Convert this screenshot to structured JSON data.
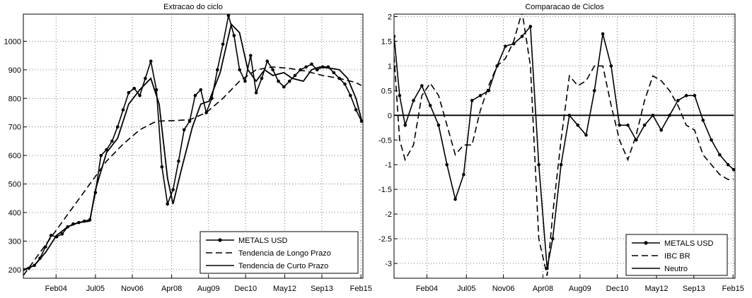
{
  "chart_data": [
    {
      "type": "line",
      "title": "Extracao do ciclo",
      "xlabel": "",
      "ylabel": "",
      "xticks": [
        "Feb04",
        "Jul05",
        "Nov06",
        "Apr08",
        "Aug09",
        "Dec10",
        "May12",
        "Sep13",
        "Feb15"
      ],
      "yticks": [
        200,
        300,
        400,
        500,
        600,
        700,
        800,
        900,
        1000
      ],
      "ylim": [
        170,
        1095
      ],
      "grid": true,
      "legend_position": "bottom-right",
      "series": [
        {
          "name": "METALS USD",
          "style": "line-markers",
          "x": [
            2002.9,
            2003.1,
            2003.3,
            2003.5,
            2003.7,
            2003.9,
            2004.1,
            2004.3,
            2004.5,
            2004.7,
            2004.9,
            2005.1,
            2005.3,
            2005.5,
            2005.7,
            2005.9,
            2006.1,
            2006.3,
            2006.5,
            2006.7,
            2006.9,
            2007.1,
            2007.3,
            2007.5,
            2007.7,
            2007.9,
            2008.1,
            2008.3,
            2008.5,
            2008.7,
            2008.9,
            2009.1,
            2009.3,
            2009.5,
            2009.7,
            2009.9,
            2010.1,
            2010.3,
            2010.5,
            2010.7,
            2010.9,
            2011.1,
            2011.3,
            2011.5,
            2011.7,
            2011.9,
            2012.1,
            2012.3,
            2012.5,
            2012.7,
            2012.9,
            2013.1,
            2013.3,
            2013.5,
            2013.7,
            2013.9,
            2014.1,
            2014.3,
            2014.5,
            2014.7,
            2014.9,
            2015.1
          ],
          "y": [
            200,
            205,
            215,
            240,
            280,
            320,
            315,
            325,
            350,
            360,
            365,
            370,
            375,
            470,
            600,
            620,
            650,
            700,
            760,
            820,
            835,
            810,
            870,
            930,
            830,
            560,
            430,
            480,
            580,
            690,
            720,
            810,
            830,
            750,
            800,
            900,
            990,
            1090,
            1020,
            900,
            860,
            950,
            820,
            870,
            930,
            900,
            860,
            840,
            860,
            880,
            900,
            910,
            920,
            900,
            910,
            910,
            890,
            870,
            850,
            810,
            760,
            720
          ]
        },
        {
          "name": "Tendencia de Longo Prazo",
          "style": "dashed",
          "x": [
            2002.9,
            2003.5,
            2004.1,
            2004.7,
            2005.3,
            2005.9,
            2006.5,
            2007.1,
            2007.7,
            2008.3,
            2008.9,
            2009.5,
            2010.1,
            2010.7,
            2011.3,
            2011.9,
            2012.5,
            2013.1,
            2013.7,
            2014.3,
            2014.9,
            2015.1
          ],
          "y": [
            180,
            260,
            340,
            420,
            500,
            580,
            640,
            690,
            720,
            722,
            725,
            750,
            800,
            860,
            900,
            910,
            905,
            895,
            880,
            870,
            855,
            845
          ]
        },
        {
          "name": "Tendencia de Curto Prazo",
          "style": "solid",
          "x": [
            2002.9,
            2003.3,
            2003.7,
            2004.1,
            2004.5,
            2004.9,
            2005.3,
            2005.5,
            2005.9,
            2006.3,
            2006.7,
            2007.1,
            2007.5,
            2007.8,
            2008.1,
            2008.3,
            2008.6,
            2009.0,
            2009.3,
            2009.6,
            2010.0,
            2010.4,
            2010.7,
            2011.0,
            2011.3,
            2011.6,
            2011.9,
            2012.3,
            2012.6,
            2013.0,
            2013.3,
            2013.6,
            2014.0,
            2014.3,
            2014.6,
            2014.9,
            2015.1
          ],
          "y": [
            200,
            215,
            260,
            320,
            350,
            365,
            370,
            480,
            610,
            660,
            780,
            830,
            870,
            780,
            520,
            430,
            550,
            700,
            780,
            790,
            890,
            1060,
            1030,
            900,
            860,
            900,
            880,
            890,
            870,
            860,
            900,
            910,
            905,
            900,
            870,
            800,
            725
          ]
        }
      ]
    },
    {
      "type": "line",
      "title": "Comparacao de Ciclos",
      "xlabel": "",
      "ylabel": "",
      "xticks": [
        "Feb04",
        "Jul05",
        "Nov06",
        "Apr08",
        "Aug09",
        "Dec10",
        "May12",
        "Sep13",
        "Feb15"
      ],
      "yticks": [
        -3,
        -2.5,
        -2,
        -1.5,
        -1,
        -0.5,
        0,
        0.5,
        1,
        1.5,
        2
      ],
      "ylim": [
        -3.3,
        2.05
      ],
      "grid": true,
      "legend_position": "bottom-right",
      "series": [
        {
          "name": "METALS USD",
          "style": "line-markers",
          "x": [
            2002.9,
            2003.1,
            2003.3,
            2003.6,
            2003.9,
            2004.2,
            2004.5,
            2004.8,
            2005.1,
            2005.4,
            2005.7,
            2006.0,
            2006.3,
            2006.6,
            2006.9,
            2007.2,
            2007.5,
            2007.8,
            2008.1,
            2008.4,
            2008.6,
            2008.9,
            2009.2,
            2009.5,
            2009.8,
            2010.1,
            2010.4,
            2010.7,
            2011.0,
            2011.3,
            2011.6,
            2011.9,
            2012.2,
            2012.5,
            2012.8,
            2013.1,
            2013.4,
            2013.7,
            2014.0,
            2014.3,
            2014.6,
            2014.9,
            2015.1
          ],
          "y": [
            1.6,
            0.4,
            -0.2,
            0.3,
            0.6,
            0.2,
            -0.2,
            -1.0,
            -1.7,
            -1.2,
            0.3,
            0.4,
            0.5,
            1.0,
            1.4,
            1.45,
            1.6,
            1.8,
            -1.0,
            -3.1,
            -2.5,
            -1.0,
            0.0,
            -0.2,
            -0.4,
            0.5,
            1.65,
            1.0,
            -0.2,
            -0.2,
            -0.5,
            -0.2,
            0.0,
            -0.3,
            0.0,
            0.3,
            0.4,
            0.4,
            -0.1,
            -0.5,
            -0.8,
            -1.0,
            -1.1
          ]
        },
        {
          "name": "IBC BR",
          "style": "dashed",
          "x": [
            2002.9,
            2003.1,
            2003.3,
            2003.6,
            2003.9,
            2004.2,
            2004.5,
            2004.8,
            2005.1,
            2005.4,
            2005.7,
            2006.0,
            2006.3,
            2006.6,
            2006.9,
            2007.2,
            2007.5,
            2007.8,
            2008.1,
            2008.4,
            2008.6,
            2008.9,
            2009.2,
            2009.5,
            2009.8,
            2010.1,
            2010.4,
            2010.7,
            2011.0,
            2011.3,
            2011.6,
            2011.9,
            2012.2,
            2012.5,
            2012.8,
            2013.1,
            2013.4,
            2013.7,
            2014.0,
            2014.3,
            2014.6,
            2014.9,
            2015.1
          ],
          "y": [
            1.2,
            -0.5,
            -0.9,
            -0.6,
            0.4,
            0.65,
            0.4,
            -0.2,
            -0.8,
            -0.6,
            -0.6,
            0.1,
            0.6,
            1.0,
            1.15,
            1.5,
            2.1,
            1.0,
            -2.5,
            -3.25,
            -2.0,
            -0.5,
            0.8,
            0.6,
            0.7,
            1.0,
            1.0,
            0.2,
            -0.5,
            -0.9,
            -0.4,
            0.3,
            0.8,
            0.7,
            0.5,
            0.2,
            -0.2,
            -0.3,
            -0.8,
            -1.0,
            -1.2,
            -1.3,
            -1.3
          ]
        },
        {
          "name": "Neutro",
          "style": "solid",
          "x": [
            2002.9,
            2015.1
          ],
          "y": [
            0,
            0
          ]
        }
      ]
    }
  ]
}
